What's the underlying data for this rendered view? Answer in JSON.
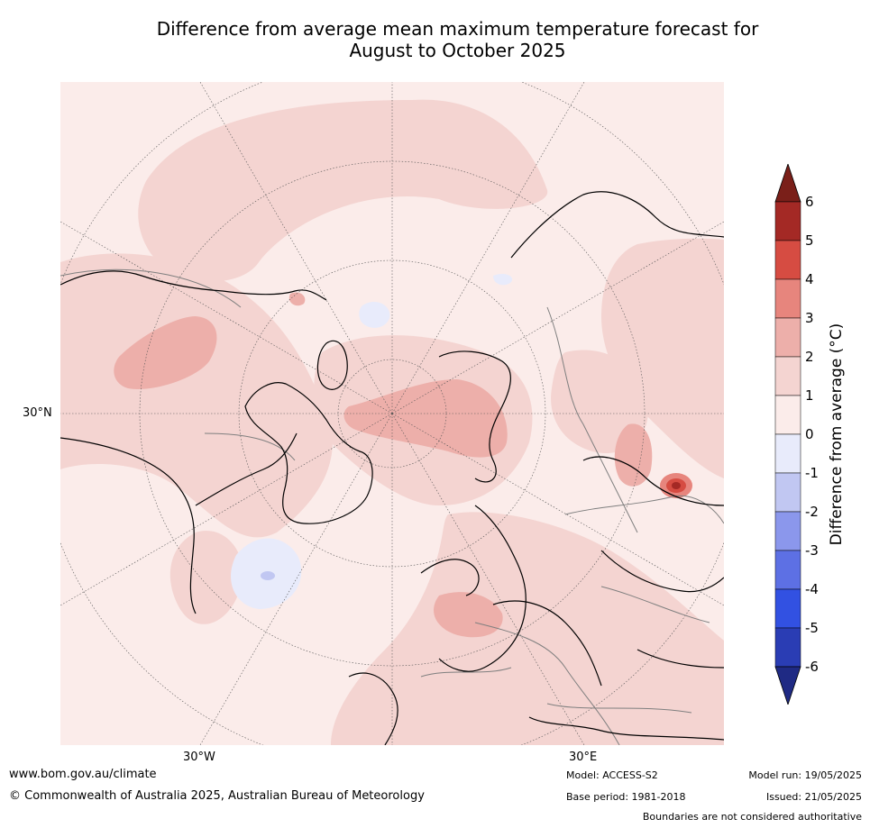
{
  "title_line1": "Difference from average mean maximum temperature forecast for",
  "title_line2": "August to October 2025",
  "map": {
    "lat_labels": [
      "30°N"
    ],
    "lon_labels": [
      "30°W",
      "30°E"
    ],
    "colors": {
      "land_outline": "#000000",
      "border": "#7f7f7f",
      "grid": "#555555"
    }
  },
  "colorbar": {
    "label": "Difference from average (°C)",
    "ticks": [
      "6",
      "5",
      "4",
      "3",
      "2",
      "1",
      "0",
      "-1",
      "-2",
      "-3",
      "-4",
      "-5",
      "-6"
    ],
    "colors": {
      "over": "#7a1f19",
      "5_6": "#a42925",
      "4_5": "#d64c42",
      "3_4": "#e7857d",
      "2_3": "#edafaa",
      "1_2": "#f4d4d1",
      "0_1": "#fbecea",
      "m1_0": "#e8ebfb",
      "m2_m1": "#c1c7f2",
      "m3_m2": "#8b97ec",
      "m4_m3": "#5d70e4",
      "m5_m4": "#3251e2",
      "m6_m5": "#2a3db4",
      "under": "#1f2a84"
    }
  },
  "footer": {
    "website": "www.bom.gov.au/climate",
    "copyright": "© Commonwealth of Australia 2025, Australian Bureau of Meteorology",
    "model": "Model: ACCESS-S2",
    "base_period": "Base period: 1981-2018",
    "model_run": "Model run: 19/05/2025",
    "issued": "Issued: 21/05/2025",
    "disclaimer": "Boundaries are not considered authoritative"
  }
}
